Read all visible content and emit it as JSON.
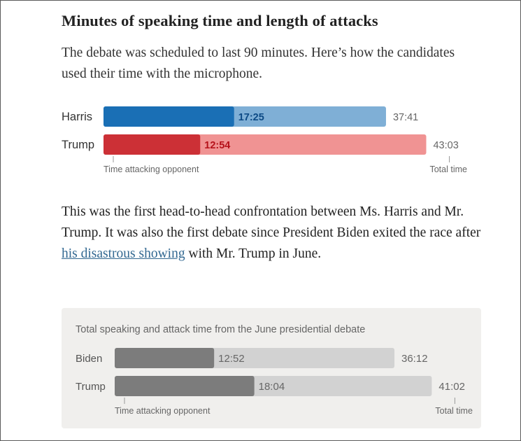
{
  "article": {
    "headline": "Minutes of speaking time and length of attacks",
    "subhead": "The debate was scheduled to last 90 minutes. Here’s how the candidates used their time with the microphone.",
    "body_before_link": "This was the first head-to-head confrontation between Ms. Harris and Mr. Trump. It was also the first debate since President Biden exited the race after ",
    "body_link": "his disastrous showing",
    "body_after_link": " with Mr. Trump in June."
  },
  "colors": {
    "harris_total": "#7fafd6",
    "harris_attack": "#1a6fb5",
    "harris_label": "#0d4a85",
    "trump_total": "#f09393",
    "trump_attack": "#cc3036",
    "trump_label": "#b5111a",
    "june_total": "#d2d2d2",
    "june_attack": "#7c7c7c"
  },
  "chart_data": [
    {
      "type": "bar",
      "title": "",
      "orientation": "horizontal",
      "categories": [
        "Harris",
        "Trump"
      ],
      "series": [
        {
          "name": "Total time",
          "values_minutes": [
            37.683,
            43.05
          ],
          "labels": [
            "37:41",
            "43:03"
          ]
        },
        {
          "name": "Time attacking opponent",
          "values_minutes": [
            17.417,
            12.9
          ],
          "labels": [
            "17:25",
            "12:54"
          ]
        }
      ],
      "axis_labels": {
        "attack": "Time attacking opponent",
        "total": "Total time"
      }
    },
    {
      "type": "bar",
      "title": "Total speaking and attack time from the June presidential debate",
      "orientation": "horizontal",
      "categories": [
        "Biden",
        "Trump"
      ],
      "series": [
        {
          "name": "Total time",
          "values_minutes": [
            36.2,
            41.033
          ],
          "labels": [
            "36:12",
            "41:02"
          ]
        },
        {
          "name": "Time attacking opponent",
          "values_minutes": [
            12.867,
            18.067
          ],
          "labels": [
            "12:52",
            "18:04"
          ]
        }
      ],
      "axis_labels": {
        "attack": "Time attacking opponent",
        "total": "Total time"
      }
    }
  ]
}
